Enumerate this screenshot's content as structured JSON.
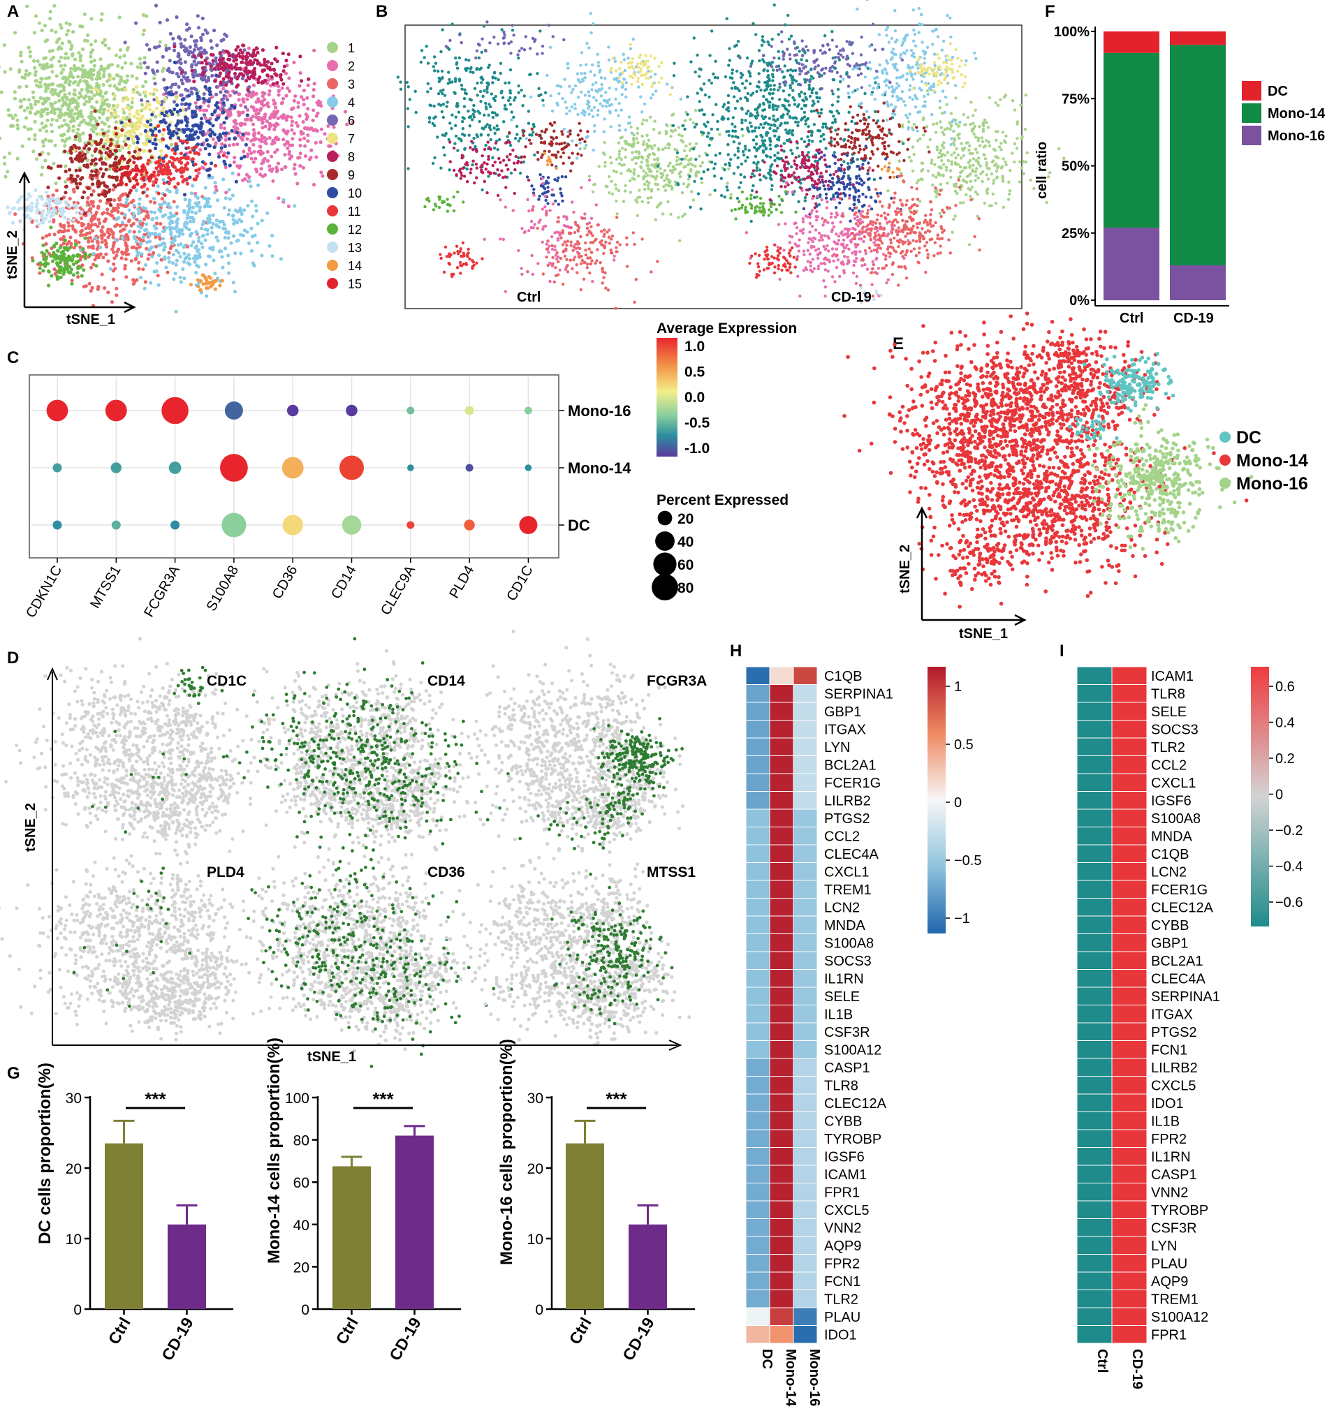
{
  "panel_letters": {
    "a": "A",
    "b": "B",
    "c": "C",
    "d": "D",
    "e": "E",
    "f": "F",
    "g": "G",
    "h": "H",
    "i": "I"
  },
  "colors": {
    "c1": "#A6D38A",
    "c2": "#E76EAE",
    "c3": "#EB6466",
    "c4": "#86CBE7",
    "c6": "#7466B3",
    "c7": "#EDE383",
    "c8": "#B81E5B",
    "c9": "#A62A2B",
    "c10": "#2E4BA3",
    "c11": "#E8363B",
    "c12": "#5BB33A",
    "c13": "#C4E1F2",
    "c14": "#F39B43",
    "c15": "#E3232C",
    "teal": "#1F8B8B",
    "dc": "#5FC4C2",
    "mono14": "#E8373B",
    "mono16": "#A3D48A",
    "gold": "#7E8034",
    "purple": "#6F2B8A",
    "green": "#108A45",
    "violet": "#7A52A0",
    "grey": "#D3D3D3",
    "dgreen": "#2E7D32"
  },
  "chart_data": [
    {
      "id": "A",
      "type": "scatter",
      "title": "",
      "xlabel": "tSNE_1",
      "ylabel": "tSNE_2",
      "legend": [
        "1",
        "2",
        "3",
        "4",
        "6",
        "7",
        "8",
        "9",
        "10",
        "11",
        "12",
        "13",
        "14",
        "15"
      ]
    },
    {
      "id": "B",
      "type": "scatter",
      "xlabel": "",
      "ylabel": "",
      "facets": [
        "Ctrl",
        "CD-19"
      ]
    },
    {
      "id": "C",
      "type": "dotplot",
      "genes": [
        "CDKN1C",
        "MTSS1",
        "FCGR3A",
        "S100A8",
        "CD36",
        "CD14",
        "CLEC9A",
        "PLD4",
        "CD1C"
      ],
      "groups": [
        "Mono-16",
        "Mono-14",
        "DC"
      ],
      "avg_expression": [
        [
          1.0,
          1.0,
          1.0,
          -0.8,
          -1.0,
          -1.0,
          -0.3,
          0.1,
          -0.2
        ],
        [
          -0.5,
          -0.5,
          -0.5,
          1.0,
          0.5,
          0.9,
          -0.6,
          -0.9,
          -0.6
        ],
        [
          -0.6,
          -0.4,
          -0.6,
          -0.2,
          0.3,
          -0.1,
          0.9,
          0.8,
          1.0
        ]
      ],
      "pct_expressed": [
        [
          45,
          45,
          75,
          30,
          10,
          10,
          3,
          5,
          3
        ],
        [
          5,
          8,
          12,
          80,
          45,
          60,
          2,
          3,
          2
        ],
        [
          5,
          5,
          5,
          60,
          40,
          35,
          3,
          8,
          30
        ]
      ],
      "color_title": "Average Expression",
      "color_ticks": [
        "1.0",
        "0.5",
        "0.0",
        "-0.5",
        "-1.0"
      ],
      "size_title": "Percent Expressed",
      "size_ticks": [
        "20",
        "40",
        "60",
        "80"
      ]
    },
    {
      "id": "D",
      "type": "scatter",
      "xlabel": "tSNE_1",
      "ylabel": "tSNE_2",
      "panels": [
        "CD1C",
        "CD14",
        "FCGR3A",
        "PLD4",
        "CD36",
        "MTSS1"
      ]
    },
    {
      "id": "E",
      "type": "scatter",
      "xlabel": "tSNE_1",
      "ylabel": "tSNE_2",
      "legend": [
        "DC",
        "Mono-14",
        "Mono-16"
      ]
    },
    {
      "id": "F",
      "type": "bar",
      "stacked": true,
      "ylabel": "cell ratio",
      "categories": [
        "Ctrl",
        "CD-19"
      ],
      "yticks": [
        "100%",
        "75%",
        "50%",
        "25%",
        "0%"
      ],
      "series": [
        {
          "name": "Mono-16",
          "values": [
            27,
            13
          ]
        },
        {
          "name": "Mono-14",
          "values": [
            65,
            82
          ]
        },
        {
          "name": "DC",
          "values": [
            8,
            5
          ]
        }
      ],
      "legend": [
        "DC",
        "Mono-14",
        "Mono-16"
      ]
    },
    {
      "id": "G1",
      "type": "bar",
      "ylabel": "DC cells proportion(%)",
      "categories": [
        "Ctrl",
        "CD-19"
      ],
      "values": [
        23.5,
        12
      ],
      "errors": [
        3.2,
        2.7
      ],
      "ylim": [
        0,
        30
      ],
      "yticks": [
        "30",
        "20",
        "10",
        "0"
      ],
      "sig": "***"
    },
    {
      "id": "G2",
      "type": "bar",
      "ylabel": "Mono-14 cells proportion(%)",
      "categories": [
        "Ctrl",
        "CD-19"
      ],
      "values": [
        67.5,
        82
      ],
      "errors": [
        4.5,
        4.5
      ],
      "ylim": [
        0,
        100
      ],
      "yticks": [
        "100",
        "80",
        "60",
        "40",
        "20",
        "0"
      ],
      "sig": "***"
    },
    {
      "id": "G3",
      "type": "bar",
      "ylabel": "Mono-16 cells proportion(%)",
      "categories": [
        "Ctrl",
        "CD-19"
      ],
      "values": [
        23.5,
        12
      ],
      "errors": [
        3.2,
        2.7
      ],
      "ylim": [
        0,
        30
      ],
      "yticks": [
        "30",
        "20",
        "10",
        "0"
      ],
      "sig": "***"
    },
    {
      "id": "H",
      "type": "heatmap",
      "columns": [
        "DC",
        "Mono-14",
        "Mono-16"
      ],
      "rows": [
        "C1QB",
        "SERPINA1",
        "GBP1",
        "ITGAX",
        "LYN",
        "BCL2A1",
        "FCER1G",
        "LILRB2",
        "PTGS2",
        "CCL2",
        "CLEC4A",
        "CXCL1",
        "TREM1",
        "LCN2",
        "MNDA",
        "S100A8",
        "SOCS3",
        "IL1RN",
        "SELE",
        "IL1B",
        "CSF3R",
        "S100A12",
        "CASP1",
        "TLR8",
        "CLEC12A",
        "CYBB",
        "TYROBP",
        "IGSF6",
        "ICAM1",
        "FPR1",
        "CXCL5",
        "VNN2",
        "AQP9",
        "FPR2",
        "FCN1",
        "TLR2",
        "PLAU",
        "IDO1"
      ],
      "values": [
        [
          -1.15,
          0.15,
          0.95
        ],
        [
          -0.8,
          1.15,
          -0.3
        ],
        [
          -0.8,
          1.15,
          -0.3
        ],
        [
          -0.8,
          1.15,
          -0.3
        ],
        [
          -0.8,
          1.15,
          -0.3
        ],
        [
          -0.8,
          1.15,
          -0.3
        ],
        [
          -0.8,
          1.15,
          -0.3
        ],
        [
          -0.8,
          1.15,
          -0.3
        ],
        [
          -0.6,
          1.15,
          -0.55
        ],
        [
          -0.6,
          1.15,
          -0.55
        ],
        [
          -0.6,
          1.15,
          -0.55
        ],
        [
          -0.6,
          1.15,
          -0.55
        ],
        [
          -0.6,
          1.15,
          -0.55
        ],
        [
          -0.6,
          1.15,
          -0.55
        ],
        [
          -0.6,
          1.15,
          -0.55
        ],
        [
          -0.6,
          1.15,
          -0.55
        ],
        [
          -0.6,
          1.15,
          -0.55
        ],
        [
          -0.6,
          1.15,
          -0.55
        ],
        [
          -0.6,
          1.15,
          -0.55
        ],
        [
          -0.6,
          1.15,
          -0.55
        ],
        [
          -0.6,
          1.15,
          -0.55
        ],
        [
          -0.6,
          1.15,
          -0.55
        ],
        [
          -0.75,
          1.15,
          -0.4
        ],
        [
          -0.75,
          1.15,
          -0.4
        ],
        [
          -0.75,
          1.15,
          -0.4
        ],
        [
          -0.75,
          1.15,
          -0.4
        ],
        [
          -0.75,
          1.15,
          -0.4
        ],
        [
          -0.75,
          1.15,
          -0.4
        ],
        [
          -0.75,
          1.15,
          -0.4
        ],
        [
          -0.75,
          1.15,
          -0.4
        ],
        [
          -0.75,
          1.15,
          -0.4
        ],
        [
          -0.75,
          1.15,
          -0.4
        ],
        [
          -0.75,
          1.15,
          -0.4
        ],
        [
          -0.75,
          1.15,
          -0.4
        ],
        [
          -0.75,
          1.15,
          -0.4
        ],
        [
          -0.75,
          1.15,
          -0.4
        ],
        [
          -0.05,
          1.0,
          -1.05
        ],
        [
          0.35,
          0.55,
          -1.15
        ]
      ],
      "colorbar_ticks": [
        "1",
        "0.5",
        "0",
        "−0.5",
        "−1"
      ]
    },
    {
      "id": "I",
      "type": "heatmap",
      "columns": [
        "Ctrl",
        "CD-19"
      ],
      "rows": [
        "ICAM1",
        "TLR8",
        "SELE",
        "SOCS3",
        "TLR2",
        "CCL2",
        "CXCL1",
        "IGSF6",
        "S100A8",
        "MNDA",
        "C1QB",
        "LCN2",
        "FCER1G",
        "CLEC12A",
        "CYBB",
        "GBP1",
        "BCL2A1",
        "CLEC4A",
        "SERPINA1",
        "ITGAX",
        "PTGS2",
        "FCN1",
        "LILRB2",
        "CXCL5",
        "IDO1",
        "IL1B",
        "FPR2",
        "IL1RN",
        "CASP1",
        "VNN2",
        "TYROBP",
        "CSF3R",
        "LYN",
        "PLAU",
        "AQP9",
        "TREM1",
        "S100A12",
        "FPR1"
      ],
      "values_ctrl": -0.7,
      "values_cd19": 0.7,
      "colorbar_ticks": [
        "0.6",
        "0.4",
        "0.2",
        "0",
        "−0.2",
        "−0.4",
        "−0.6"
      ]
    }
  ]
}
